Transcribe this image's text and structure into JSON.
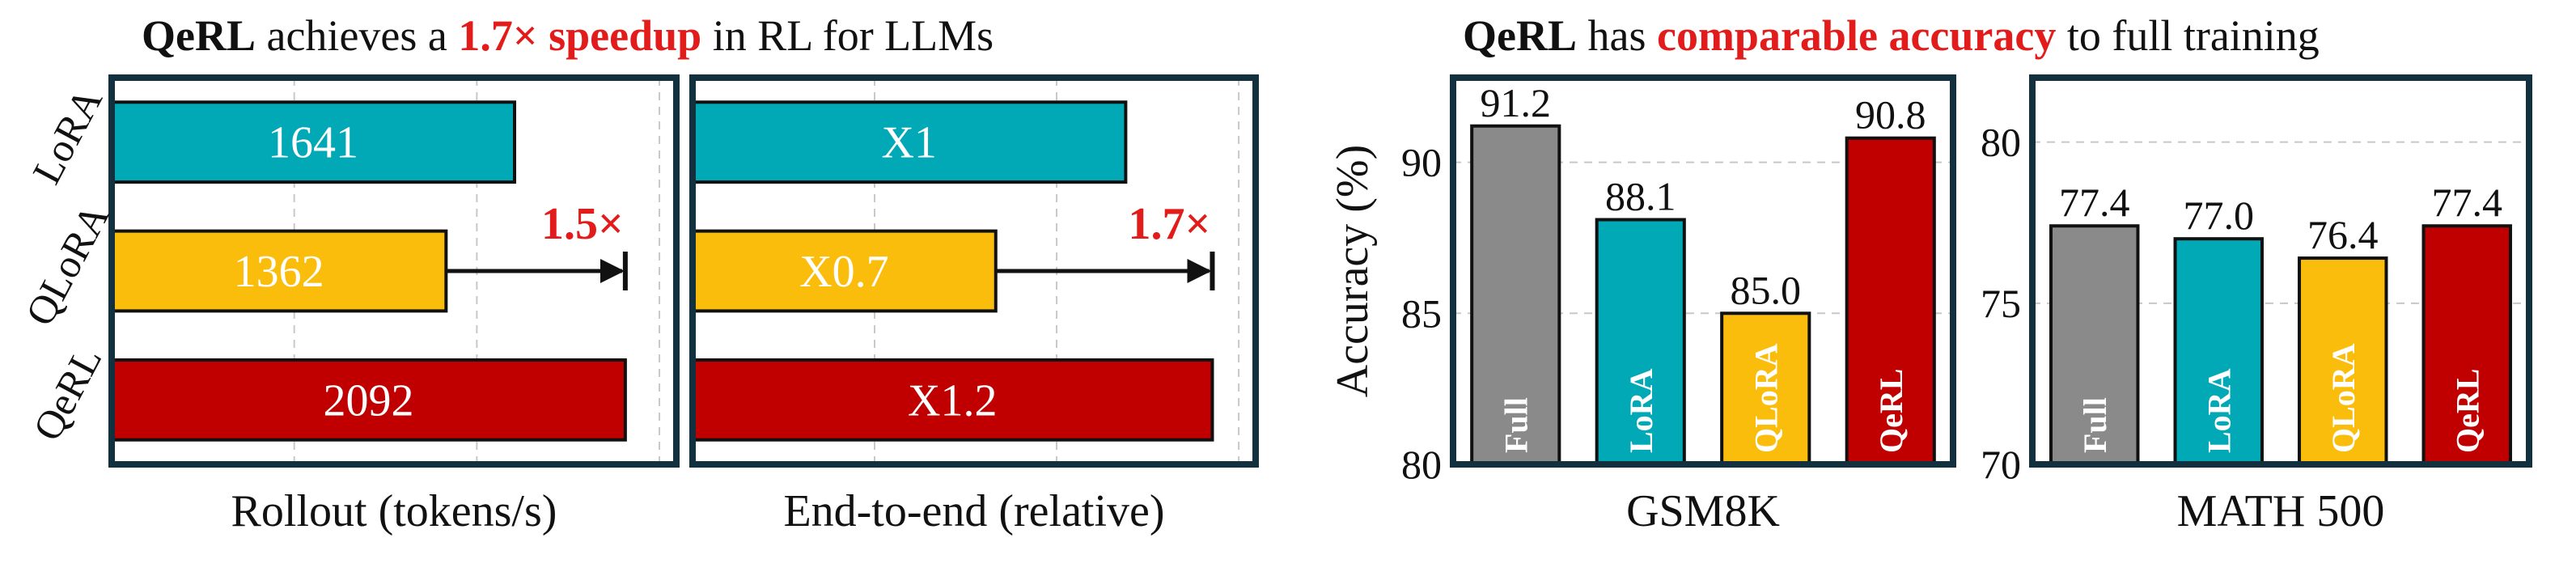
{
  "titles": {
    "left": {
      "brand": "QeRL",
      "t1": " achieves a ",
      "highlight": "1.7× speedup",
      "t2": " in RL for LLMs"
    },
    "right": {
      "brand": "QeRL",
      "t1": " has ",
      "highlight": "comparable accuracy",
      "t2": " to full training"
    }
  },
  "colors": {
    "LoRA": "#00a9b5",
    "QLoRA": "#fbbd0b",
    "QeRL": "#c00000",
    "Full": "#8a8a8a",
    "highlight": "#e21b1b",
    "frame": "#13303e"
  },
  "chart_data": [
    {
      "type": "bar",
      "orientation": "horizontal",
      "categories": [
        "LoRA",
        "QLoRA",
        "QeRL"
      ],
      "values": [
        1641,
        1362,
        2092
      ],
      "bar_labels": [
        "1641",
        "1362",
        "2092"
      ],
      "xlabel": "Rollout (tokens/s)",
      "annotation": {
        "text": "1.5×",
        "from": "QLoRA",
        "to_value": 2092
      },
      "xlim": [
        0,
        2300
      ],
      "grid": true
    },
    {
      "type": "bar",
      "orientation": "horizontal",
      "categories": [
        "LoRA",
        "QLoRA",
        "QeRL"
      ],
      "values": [
        1.0,
        0.7,
        1.2
      ],
      "bar_labels": [
        "X1",
        "X0.7",
        "X1.2"
      ],
      "xlabel": "End-to-end (relative)",
      "annotation": {
        "text": "1.7×",
        "from": "QLoRA",
        "to_value": 1.2
      },
      "xlim": [
        0,
        1.3
      ],
      "grid": true
    },
    {
      "type": "bar",
      "categories": [
        "Full",
        "LoRA",
        "QLoRA",
        "QeRL"
      ],
      "values": [
        91.2,
        88.1,
        85.0,
        90.8
      ],
      "value_labels": [
        "91.2",
        "88.1",
        "85.0",
        "90.8"
      ],
      "xlabel": "GSM8K",
      "ylabel": "Accuracy (%)",
      "ylim": [
        80,
        92.8
      ],
      "yticks": [
        80,
        85,
        90
      ],
      "grid": true
    },
    {
      "type": "bar",
      "categories": [
        "Full",
        "LoRA",
        "QLoRA",
        "QeRL"
      ],
      "values": [
        77.4,
        77.0,
        76.4,
        77.4
      ],
      "value_labels": [
        "77.4",
        "77.0",
        "76.4",
        "77.4"
      ],
      "xlabel": "MATH 500",
      "ylim": [
        70,
        82
      ],
      "yticks": [
        70,
        75,
        80
      ],
      "grid": true
    }
  ]
}
